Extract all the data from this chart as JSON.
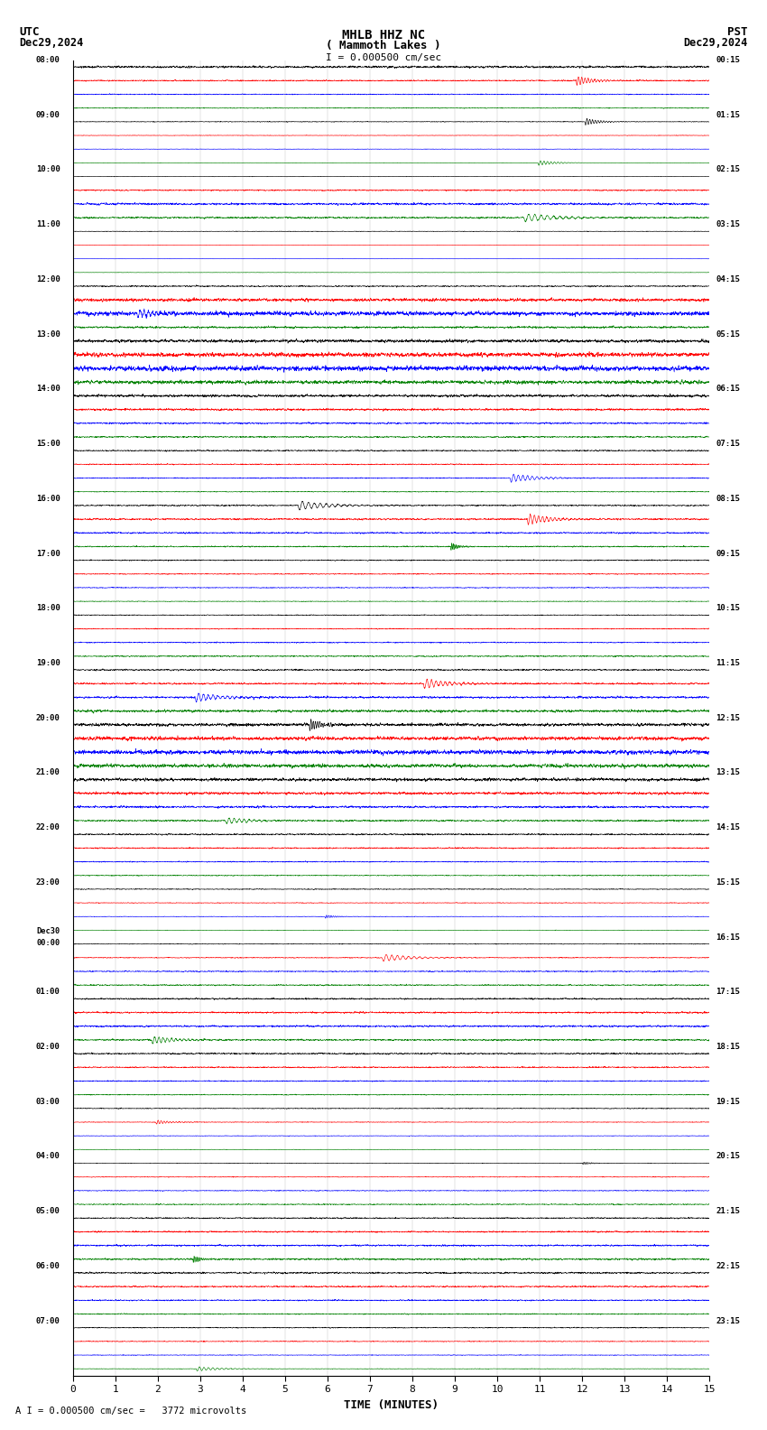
{
  "title_line1": "MHLB HHZ NC",
  "title_line2": "( Mammoth Lakes )",
  "scale_text": "I = 0.000500 cm/sec",
  "footer_text": "A I = 0.000500 cm/sec =   3772 microvolts",
  "utc_label": "UTC",
  "utc_date": "Dec29,2024",
  "pst_label": "PST",
  "pst_date": "Dec29,2024",
  "xlabel": "TIME (MINUTES)",
  "xticks": [
    0,
    1,
    2,
    3,
    4,
    5,
    6,
    7,
    8,
    9,
    10,
    11,
    12,
    13,
    14,
    15
  ],
  "time_minutes": 15,
  "channels": 4,
  "channel_colors": [
    "black",
    "red",
    "blue",
    "green"
  ],
  "bg_color": "white",
  "samples": 3000,
  "hour_groups": 24,
  "utc_hour_labels": [
    "08:00",
    "09:00",
    "10:00",
    "11:00",
    "12:00",
    "13:00",
    "14:00",
    "15:00",
    "16:00",
    "17:00",
    "18:00",
    "19:00",
    "20:00",
    "21:00",
    "22:00",
    "23:00",
    "Dec30\n00:00",
    "01:00",
    "02:00",
    "03:00",
    "04:00",
    "05:00",
    "06:00",
    "07:00"
  ],
  "pst_hour_labels": [
    "00:15",
    "01:15",
    "02:15",
    "03:15",
    "04:15",
    "05:15",
    "06:15",
    "07:15",
    "08:15",
    "09:15",
    "10:15",
    "11:15",
    "12:15",
    "13:15",
    "14:15",
    "15:15",
    "16:15",
    "17:15",
    "18:15",
    "19:15",
    "20:15",
    "21:15",
    "22:15",
    "23:15"
  ],
  "noise_levels": [
    0.45,
    0.35,
    0.3,
    0.28,
    0.25,
    0.22,
    0.2,
    0.18,
    0.2,
    0.35,
    0.45,
    0.4,
    0.22,
    0.18,
    0.16,
    0.18,
    0.35,
    0.55,
    0.65,
    0.45,
    0.55,
    0.65,
    0.7,
    0.6,
    0.5,
    0.45,
    0.4,
    0.38,
    0.35,
    0.32,
    0.3,
    0.28,
    0.35,
    0.4,
    0.38,
    0.35,
    0.32,
    0.3,
    0.28,
    0.25,
    0.28,
    0.3,
    0.32,
    0.35,
    0.38,
    0.4,
    0.45,
    0.5,
    0.55,
    0.6,
    0.65,
    0.6,
    0.55,
    0.5,
    0.45,
    0.4,
    0.38,
    0.35,
    0.32,
    0.3,
    0.28,
    0.25,
    0.22,
    0.2,
    0.25,
    0.28,
    0.32,
    0.35,
    0.38,
    0.4,
    0.42,
    0.4,
    0.38,
    0.35,
    0.32,
    0.3,
    0.28,
    0.25,
    0.22,
    0.2,
    0.22,
    0.25,
    0.28,
    0.32,
    0.35,
    0.38,
    0.4,
    0.42,
    0.4,
    0.38,
    0.35,
    0.32,
    0.3,
    0.28,
    0.25,
    0.22
  ]
}
